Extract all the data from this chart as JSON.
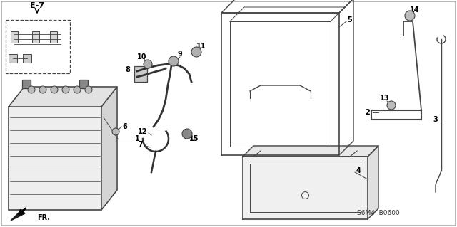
{
  "bg_color": "#ffffff",
  "line_color": "#444444",
  "text_color": "#000000",
  "ref_text": "E-7",
  "code_text": "S6M4  B0600",
  "direction_text": "FR."
}
